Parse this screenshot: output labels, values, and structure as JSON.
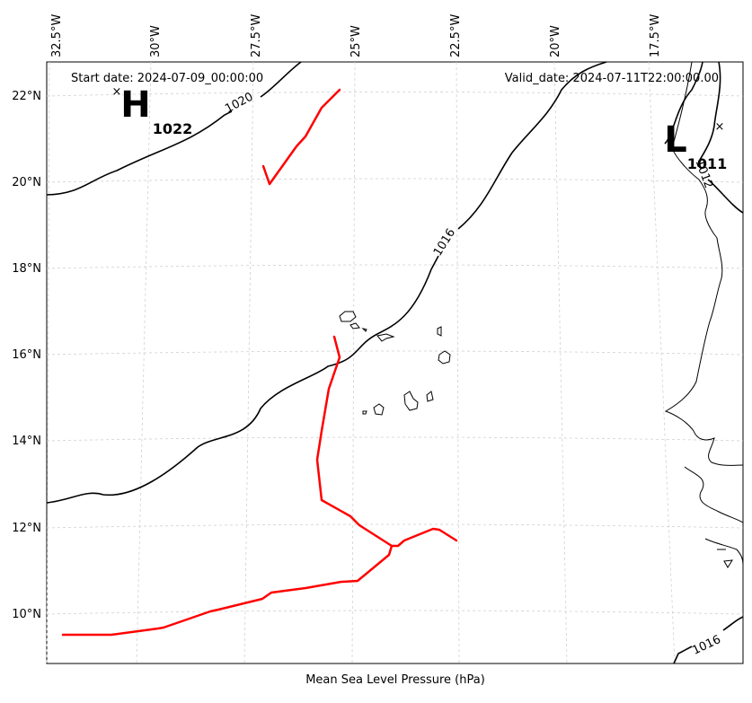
{
  "annotations": {
    "start_date": "Start date: 2024-07-09_00:00:00",
    "valid_date": "Valid_date: 2024-07-11T22:00:00.00"
  },
  "x_axis_label": "Mean Sea Level Pressure (hPa)",
  "lon_ticks": [
    "32.5°W",
    "30°W",
    "27.5°W",
    "25°W",
    "22.5°W",
    "20°W",
    "17.5°W"
  ],
  "lat_ticks": [
    "22°N",
    "20°N",
    "18°N",
    "16°N",
    "14°N",
    "12°N",
    "10°N"
  ],
  "pressure_centers": {
    "high": {
      "letter": "H",
      "value": "1022",
      "marker": "×"
    },
    "low": {
      "letter": "L",
      "value": "1011",
      "marker": "×"
    }
  },
  "isobar_labels": [
    "1020",
    "1016",
    "1012",
    "1016"
  ],
  "colors": {
    "track": "#ff0000",
    "isobar": "#000000",
    "grid": "#cccccc",
    "coast": "#000000"
  }
}
